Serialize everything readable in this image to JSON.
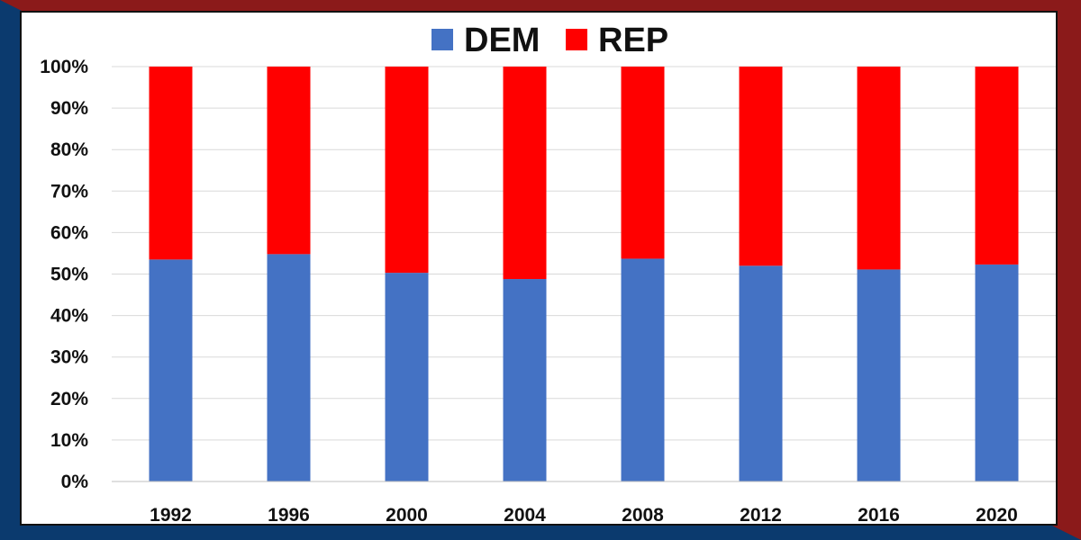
{
  "chart_data": {
    "type": "bar",
    "stacked": true,
    "categories": [
      "1992",
      "1996",
      "2000",
      "2004",
      "2008",
      "2012",
      "2016",
      "2020"
    ],
    "series": [
      {
        "name": "DEM",
        "color": "#4472C4",
        "values": [
          53.5,
          54.8,
          50.3,
          48.8,
          53.7,
          52.0,
          51.1,
          52.3
        ]
      },
      {
        "name": "REP",
        "color": "#FF0000",
        "values": [
          46.5,
          45.2,
          49.7,
          51.2,
          46.3,
          48.0,
          48.9,
          47.7
        ]
      }
    ],
    "ylim": [
      0,
      100
    ],
    "y_ticks": [
      "0%",
      "10%",
      "20%",
      "30%",
      "40%",
      "50%",
      "60%",
      "70%",
      "80%",
      "90%",
      "100%"
    ],
    "grid": true,
    "legend_position": "top-center",
    "frame_colors": {
      "left": "#0b3a6e",
      "right": "#8b1a1a"
    }
  }
}
